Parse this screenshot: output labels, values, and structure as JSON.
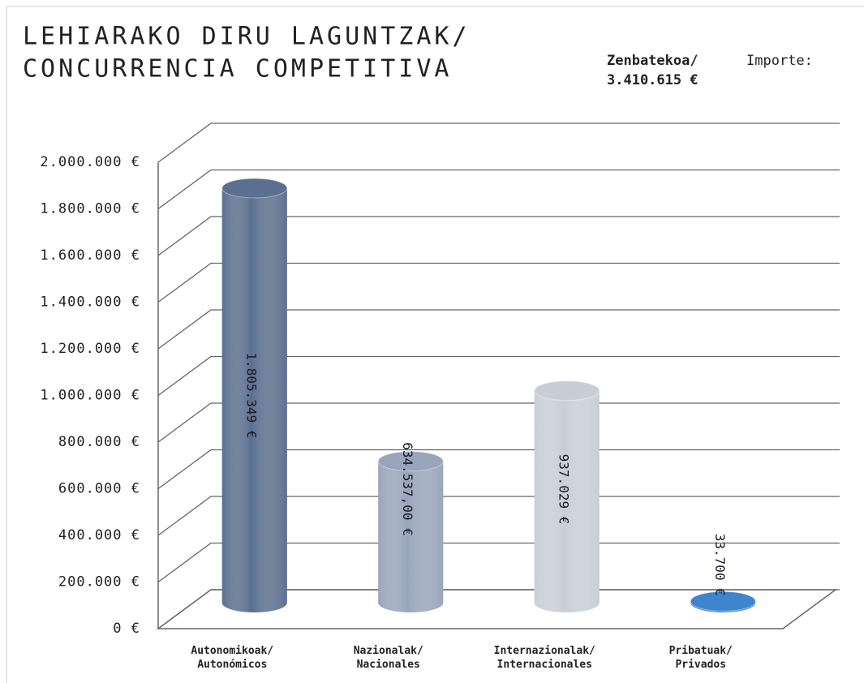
{
  "chart_data": {
    "type": "bar3d",
    "title": [
      "LEHIARAKO DIRU LAGUNTZAK/",
      "CONCURRENCIA COMPETITIVA"
    ],
    "annotation": [
      "Zenbatekoa/",
      "Importe:",
      "3.410.615 €"
    ],
    "categories": [
      "Autonomikoak/\nAutonómicos",
      "Nazionalak/\nNacionales",
      "Internazionalak/\nInternacionales",
      "Pribatuak/\nPrivados"
    ],
    "values": [
      1805349,
      634537,
      937029,
      33700
    ],
    "value_labels": [
      "1.805.349 €",
      "634.537,00 €",
      "937.029 €",
      "33.700 €"
    ],
    "colors": [
      "#5b6f8e",
      "#99a5bb",
      "#c9cdd7",
      "#3f84cf"
    ],
    "ylim": [
      0,
      2000000
    ],
    "yticks": [
      {
        "value": 0,
        "label": "0 €"
      },
      {
        "value": 200000,
        "label": "200.000 €"
      },
      {
        "value": 400000,
        "label": "400.000 €"
      },
      {
        "value": 600000,
        "label": "600.000 €"
      },
      {
        "value": 800000,
        "label": "800.000 €"
      },
      {
        "value": 1000000,
        "label": "1.000.000 €"
      },
      {
        "value": 1200000,
        "label": "1.200.000 €"
      },
      {
        "value": 1400000,
        "label": "1.400.000 €"
      },
      {
        "value": 1600000,
        "label": "1.600.000 €"
      },
      {
        "value": 1800000,
        "label": "1.800.000 €"
      },
      {
        "value": 2000000,
        "label": "2.000.000 €"
      }
    ],
    "grid": true
  }
}
